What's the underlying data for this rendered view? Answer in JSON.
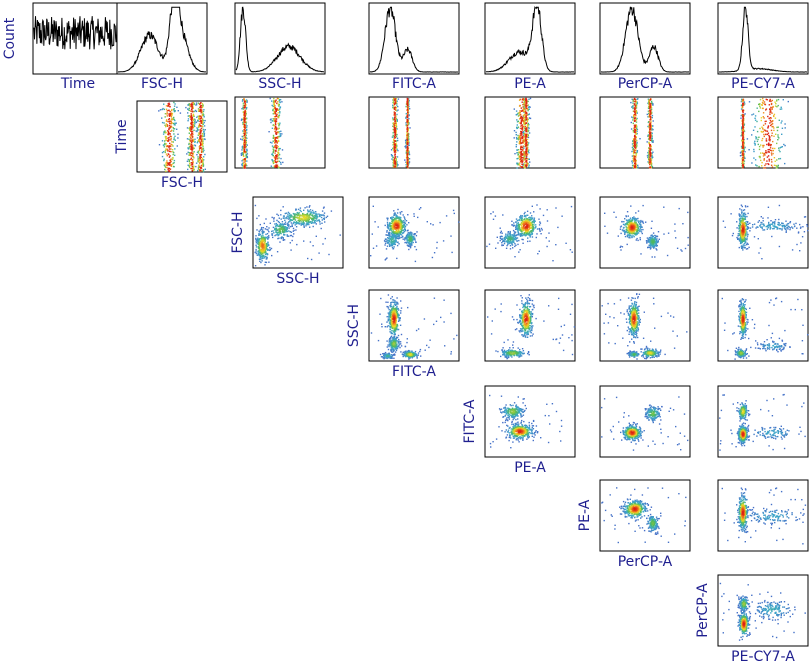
{
  "chart_data": {
    "type": "scatter-matrix",
    "parameters": [
      "Time",
      "FSC-H",
      "SSC-H",
      "FITC-A",
      "PE-A",
      "PerCP-A",
      "PE-CY7-A"
    ],
    "histogram_ylabel": "Count",
    "histograms": [
      {
        "param": "Time",
        "shape": "uniform-noise",
        "peaks": []
      },
      {
        "param": "FSC-H",
        "shape": "multimodal",
        "peaks": [
          {
            "pos": 0.36,
            "height": 0.55,
            "width": 0.1
          },
          {
            "pos": 0.64,
            "height": 0.95,
            "width": 0.05
          },
          {
            "pos": 0.72,
            "height": 0.5,
            "width": 0.08
          }
        ]
      },
      {
        "param": "SSC-H",
        "shape": "multimodal",
        "peaks": [
          {
            "pos": 0.08,
            "height": 0.95,
            "width": 0.03
          },
          {
            "pos": 0.6,
            "height": 0.38,
            "width": 0.13
          }
        ]
      },
      {
        "param": "FITC-A",
        "shape": "multimodal",
        "peaks": [
          {
            "pos": 0.23,
            "height": 0.95,
            "width": 0.06
          },
          {
            "pos": 0.43,
            "height": 0.33,
            "width": 0.05
          }
        ]
      },
      {
        "param": "PE-A",
        "shape": "multimodal",
        "peaks": [
          {
            "pos": 0.38,
            "height": 0.3,
            "width": 0.12
          },
          {
            "pos": 0.58,
            "height": 0.95,
            "width": 0.05
          }
        ]
      },
      {
        "param": "PerCP-A",
        "shape": "multimodal",
        "peaks": [
          {
            "pos": 0.35,
            "height": 0.95,
            "width": 0.07
          },
          {
            "pos": 0.6,
            "height": 0.38,
            "width": 0.05
          }
        ]
      },
      {
        "param": "PE-CY7-A",
        "shape": "multimodal",
        "peaks": [
          {
            "pos": 0.3,
            "height": 0.95,
            "width": 0.03
          },
          {
            "pos": 0.45,
            "height": 0.05,
            "width": 0.15
          }
        ]
      }
    ],
    "scatter_plots": [
      {
        "x": "FSC-H",
        "y": "Time",
        "labeled": true,
        "type": "bands",
        "bands": [
          {
            "pos": 0.35,
            "width": 0.09
          },
          {
            "pos": 0.6,
            "width": 0.05
          },
          {
            "pos": 0.7,
            "width": 0.05
          }
        ]
      },
      {
        "x": "SSC-H",
        "y": "Time",
        "labeled": false,
        "type": "bands",
        "bands": [
          {
            "pos": 0.1,
            "width": 0.03
          },
          {
            "pos": 0.45,
            "width": 0.06
          }
        ]
      },
      {
        "x": "FITC-A",
        "y": "Time",
        "labeled": false,
        "type": "bands",
        "bands": [
          {
            "pos": 0.28,
            "width": 0.035
          },
          {
            "pos": 0.42,
            "width": 0.02
          }
        ]
      },
      {
        "x": "PE-A",
        "y": "Time",
        "labeled": false,
        "type": "bands",
        "bands": [
          {
            "pos": 0.4,
            "width": 0.07
          },
          {
            "pos": 0.45,
            "width": 0.04
          }
        ]
      },
      {
        "x": "PerCP-A",
        "y": "Time",
        "labeled": false,
        "type": "bands",
        "bands": [
          {
            "pos": 0.38,
            "width": 0.035
          },
          {
            "pos": 0.55,
            "width": 0.03
          }
        ]
      },
      {
        "x": "PE-CY7-A",
        "y": "Time",
        "labeled": false,
        "type": "bands",
        "bands": [
          {
            "pos": 0.27,
            "width": 0.02
          },
          {
            "pos": 0.55,
            "width": 0.2
          }
        ]
      },
      {
        "x": "SSC-H",
        "y": "FSC-H",
        "labeled": true,
        "type": "clusters",
        "clusters": [
          {
            "x": 0.1,
            "y": 0.32,
            "sx": 0.035,
            "sy": 0.1,
            "n": 320,
            "core": 0.9
          },
          {
            "x": 0.3,
            "y": 0.55,
            "sx": 0.06,
            "sy": 0.06,
            "n": 160,
            "core": 0.55
          },
          {
            "x": 0.55,
            "y": 0.72,
            "sx": 0.12,
            "sy": 0.06,
            "n": 320,
            "core": 0.7
          }
        ]
      },
      {
        "x": "FITC-A",
        "y": "FSC-H",
        "labeled": false,
        "type": "clusters",
        "clusters": [
          {
            "x": 0.3,
            "y": 0.6,
            "sx": 0.05,
            "sy": 0.08,
            "n": 360,
            "core": 1.0
          },
          {
            "x": 0.45,
            "y": 0.42,
            "sx": 0.03,
            "sy": 0.05,
            "n": 140,
            "core": 0.5
          },
          {
            "x": 0.25,
            "y": 0.4,
            "sx": 0.04,
            "sy": 0.06,
            "n": 120,
            "core": 0.4
          }
        ]
      },
      {
        "x": "PE-A",
        "y": "FSC-H",
        "labeled": false,
        "type": "clusters",
        "clusters": [
          {
            "x": 0.45,
            "y": 0.6,
            "sx": 0.06,
            "sy": 0.08,
            "n": 360,
            "core": 1.0
          },
          {
            "x": 0.27,
            "y": 0.42,
            "sx": 0.05,
            "sy": 0.05,
            "n": 160,
            "core": 0.45
          }
        ]
      },
      {
        "x": "PerCP-A",
        "y": "FSC-H",
        "labeled": false,
        "type": "clusters",
        "clusters": [
          {
            "x": 0.35,
            "y": 0.58,
            "sx": 0.05,
            "sy": 0.07,
            "n": 330,
            "core": 1.0
          },
          {
            "x": 0.58,
            "y": 0.38,
            "sx": 0.03,
            "sy": 0.05,
            "n": 150,
            "core": 0.5
          }
        ]
      },
      {
        "x": "PE-CY7-A",
        "y": "FSC-H",
        "labeled": false,
        "type": "clusters",
        "clusters": [
          {
            "x": 0.27,
            "y": 0.55,
            "sx": 0.025,
            "sy": 0.12,
            "n": 320,
            "core": 1.0
          },
          {
            "x": 0.6,
            "y": 0.6,
            "sx": 0.15,
            "sy": 0.04,
            "n": 120,
            "core": 0.3
          }
        ]
      },
      {
        "x": "FITC-A",
        "y": "SSC-H",
        "labeled": true,
        "type": "clusters",
        "clusters": [
          {
            "x": 0.27,
            "y": 0.6,
            "sx": 0.03,
            "sy": 0.12,
            "n": 360,
            "core": 1.0
          },
          {
            "x": 0.27,
            "y": 0.25,
            "sx": 0.03,
            "sy": 0.05,
            "n": 160,
            "core": 0.6
          },
          {
            "x": 0.45,
            "y": 0.1,
            "sx": 0.04,
            "sy": 0.025,
            "n": 160,
            "core": 0.7
          },
          {
            "x": 0.2,
            "y": 0.08,
            "sx": 0.03,
            "sy": 0.02,
            "n": 80,
            "core": 0.4
          }
        ]
      },
      {
        "x": "PE-A",
        "y": "SSC-H",
        "labeled": false,
        "type": "clusters",
        "clusters": [
          {
            "x": 0.45,
            "y": 0.6,
            "sx": 0.035,
            "sy": 0.12,
            "n": 360,
            "core": 1.0
          },
          {
            "x": 0.3,
            "y": 0.12,
            "sx": 0.07,
            "sy": 0.03,
            "n": 180,
            "core": 0.6
          }
        ]
      },
      {
        "x": "PerCP-A",
        "y": "SSC-H",
        "labeled": false,
        "type": "clusters",
        "clusters": [
          {
            "x": 0.37,
            "y": 0.6,
            "sx": 0.03,
            "sy": 0.12,
            "n": 340,
            "core": 1.0
          },
          {
            "x": 0.55,
            "y": 0.12,
            "sx": 0.05,
            "sy": 0.03,
            "n": 160,
            "core": 0.7
          },
          {
            "x": 0.37,
            "y": 0.1,
            "sx": 0.03,
            "sy": 0.02,
            "n": 90,
            "core": 0.5
          }
        ]
      },
      {
        "x": "PE-CY7-A",
        "y": "SSC-H",
        "labeled": false,
        "type": "clusters",
        "clusters": [
          {
            "x": 0.27,
            "y": 0.6,
            "sx": 0.02,
            "sy": 0.12,
            "n": 320,
            "core": 1.0
          },
          {
            "x": 0.25,
            "y": 0.12,
            "sx": 0.03,
            "sy": 0.03,
            "n": 120,
            "core": 0.6
          },
          {
            "x": 0.6,
            "y": 0.22,
            "sx": 0.08,
            "sy": 0.03,
            "n": 80,
            "core": 0.3
          }
        ]
      },
      {
        "x": "PE-A",
        "y": "FITC-A",
        "labeled": true,
        "type": "clusters",
        "clusters": [
          {
            "x": 0.38,
            "y": 0.37,
            "sx": 0.07,
            "sy": 0.05,
            "n": 360,
            "core": 1.0
          },
          {
            "x": 0.3,
            "y": 0.65,
            "sx": 0.06,
            "sy": 0.05,
            "n": 200,
            "core": 0.6
          }
        ]
      },
      {
        "x": "PerCP-A",
        "y": "FITC-A",
        "labeled": false,
        "type": "clusters",
        "clusters": [
          {
            "x": 0.35,
            "y": 0.35,
            "sx": 0.05,
            "sy": 0.05,
            "n": 330,
            "core": 1.0
          },
          {
            "x": 0.58,
            "y": 0.62,
            "sx": 0.04,
            "sy": 0.05,
            "n": 150,
            "core": 0.55
          }
        ]
      },
      {
        "x": "PE-CY7-A",
        "y": "FITC-A",
        "labeled": false,
        "type": "clusters",
        "clusters": [
          {
            "x": 0.27,
            "y": 0.33,
            "sx": 0.025,
            "sy": 0.06,
            "n": 280,
            "core": 1.0
          },
          {
            "x": 0.27,
            "y": 0.65,
            "sx": 0.025,
            "sy": 0.06,
            "n": 160,
            "core": 0.7
          },
          {
            "x": 0.6,
            "y": 0.35,
            "sx": 0.12,
            "sy": 0.04,
            "n": 90,
            "core": 0.3
          }
        ]
      },
      {
        "x": "PerCP-A",
        "y": "PE-A",
        "labeled": true,
        "type": "clusters",
        "clusters": [
          {
            "x": 0.38,
            "y": 0.6,
            "sx": 0.06,
            "sy": 0.06,
            "n": 360,
            "core": 1.0
          },
          {
            "x": 0.58,
            "y": 0.4,
            "sx": 0.03,
            "sy": 0.06,
            "n": 150,
            "core": 0.55
          }
        ]
      },
      {
        "x": "PE-CY7-A",
        "y": "PE-A",
        "labeled": false,
        "type": "clusters",
        "clusters": [
          {
            "x": 0.27,
            "y": 0.55,
            "sx": 0.025,
            "sy": 0.12,
            "n": 320,
            "core": 1.0
          },
          {
            "x": 0.6,
            "y": 0.5,
            "sx": 0.15,
            "sy": 0.05,
            "n": 120,
            "core": 0.3
          }
        ]
      },
      {
        "x": "PE-CY7-A",
        "y": "PerCP-A",
        "labeled": true,
        "type": "clusters",
        "clusters": [
          {
            "x": 0.28,
            "y": 0.32,
            "sx": 0.025,
            "sy": 0.08,
            "n": 300,
            "core": 1.0
          },
          {
            "x": 0.28,
            "y": 0.6,
            "sx": 0.025,
            "sy": 0.05,
            "n": 140,
            "core": 0.6
          },
          {
            "x": 0.6,
            "y": 0.52,
            "sx": 0.1,
            "sy": 0.06,
            "n": 140,
            "core": 0.35
          }
        ]
      }
    ]
  }
}
